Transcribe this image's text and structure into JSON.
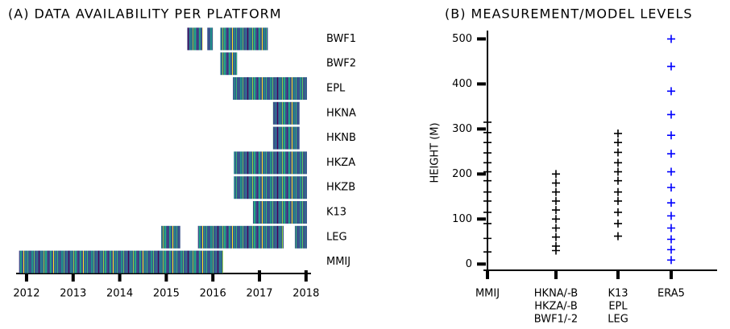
{
  "chart_data": [
    {
      "type": "timeline",
      "title": "(A) DATA AVAILABILITY PER PLATFORM",
      "categories": [
        "BWF1",
        "BWF2",
        "EPL",
        "HKNA",
        "HKNB",
        "HKZA",
        "HKZB",
        "K13",
        "LEG",
        "MMIJ"
      ],
      "segments": [
        [
          [
            2015.45,
            2015.78
          ],
          [
            2015.88,
            2016.0
          ],
          [
            2016.16,
            2017.18
          ]
        ],
        [
          [
            2016.16,
            2016.52
          ]
        ],
        [
          [
            2016.43,
            2018.02
          ]
        ],
        [
          [
            2017.29,
            2017.86
          ]
        ],
        [
          [
            2017.29,
            2017.86
          ]
        ],
        [
          [
            2016.45,
            2018.02
          ]
        ],
        [
          [
            2016.45,
            2018.02
          ]
        ],
        [
          [
            2016.86,
            2018.02
          ]
        ],
        [
          [
            2014.89,
            2015.3
          ],
          [
            2015.68,
            2017.52
          ],
          [
            2017.76,
            2018.02
          ]
        ],
        [
          [
            2011.84,
            2016.22
          ]
        ]
      ],
      "xlim": [
        2011.75,
        2018.1
      ],
      "xticks": [
        2012,
        2013,
        2014,
        2015,
        2016,
        2017,
        2018
      ]
    },
    {
      "type": "scatter",
      "title": "(B) MEASUREMENT/MODEL LEVELS",
      "ylabel": "HEIGHT (M)",
      "categories": [
        [
          "MMIJ"
        ],
        [
          "HKNA/-B",
          "HKZA/-B",
          "BWF1/-2"
        ],
        [
          "K13",
          "EPL",
          "LEG"
        ],
        [
          "ERA5"
        ]
      ],
      "colors": [
        "#000000",
        "#000000",
        "#000000",
        "#0000ff"
      ],
      "values": [
        [
          27,
          57,
          90,
          115,
          140,
          160,
          185,
          205,
          225,
          247,
          270,
          292,
          315
        ],
        [
          30,
          40,
          60,
          80,
          100,
          120,
          140,
          160,
          180,
          200
        ],
        [
          62,
          90,
          115,
          140,
          160,
          185,
          205,
          225,
          248,
          270,
          290
        ],
        [
          9,
          32,
          55,
          80,
          107,
          136,
          170,
          205,
          245,
          286,
          332,
          384,
          439,
          500
        ]
      ],
      "ylim": [
        -12,
        515
      ],
      "yticks": [
        0,
        100,
        200,
        300,
        400,
        500
      ]
    }
  ]
}
